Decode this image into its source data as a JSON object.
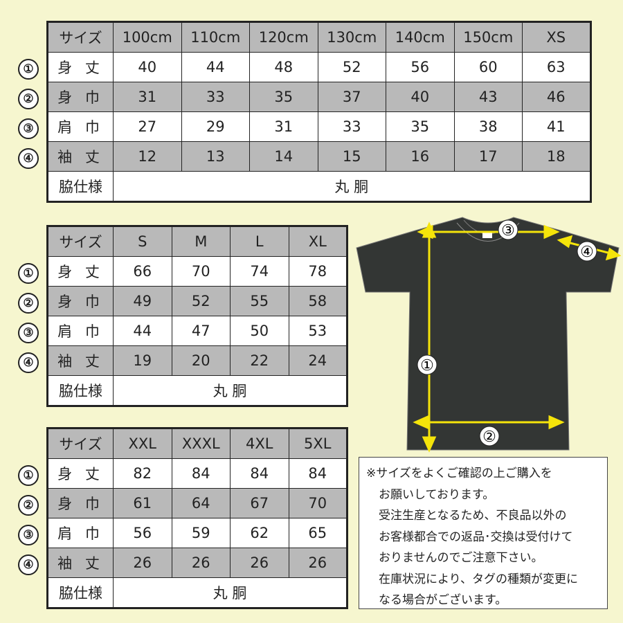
{
  "row_markers": [
    "①",
    "②",
    "③",
    "④"
  ],
  "row_labels": [
    "身 丈",
    "身 巾",
    "肩 巾",
    "袖 丈"
  ],
  "header_label": "サイズ",
  "side_label": "脇仕様",
  "side_value": "丸 胴",
  "tables": [
    {
      "sizes": [
        "100cm",
        "110cm",
        "120cm",
        "130cm",
        "140cm",
        "150cm",
        "XS"
      ],
      "rows": [
        [
          "40",
          "44",
          "48",
          "52",
          "56",
          "60",
          "63"
        ],
        [
          "31",
          "33",
          "35",
          "37",
          "40",
          "43",
          "46"
        ],
        [
          "27",
          "29",
          "31",
          "33",
          "35",
          "38",
          "41"
        ],
        [
          "12",
          "13",
          "14",
          "15",
          "16",
          "17",
          "18"
        ]
      ]
    },
    {
      "sizes": [
        "S",
        "M",
        "L",
        "XL"
      ],
      "rows": [
        [
          "66",
          "70",
          "74",
          "78"
        ],
        [
          "49",
          "52",
          "55",
          "58"
        ],
        [
          "44",
          "47",
          "50",
          "53"
        ],
        [
          "19",
          "20",
          "22",
          "24"
        ]
      ]
    },
    {
      "sizes": [
        "XXL",
        "XXXL",
        "4XL",
        "5XL"
      ],
      "rows": [
        [
          "82",
          "84",
          "84",
          "84"
        ],
        [
          "61",
          "64",
          "67",
          "70"
        ],
        [
          "56",
          "59",
          "62",
          "65"
        ],
        [
          "26",
          "26",
          "26",
          "26"
        ]
      ]
    }
  ],
  "diagram": {
    "markers": [
      "①",
      "②",
      "③",
      "④"
    ],
    "shirt_color": "#333634",
    "arrow_color": "#f5e40a"
  },
  "note_lines": [
    "※サイズをよくご確認の上ご購入を",
    "お願いしております。",
    "受注生産となるため、不良品以外の",
    "お客様都合での返品･交換は受付けて",
    "おりませんのでご注意下さい。",
    "在庫状況により、タグの種類が変更に",
    "なる場合がございます。"
  ],
  "colors": {
    "background": "#f6f6cf",
    "gray_row": "#b9b9b9"
  }
}
